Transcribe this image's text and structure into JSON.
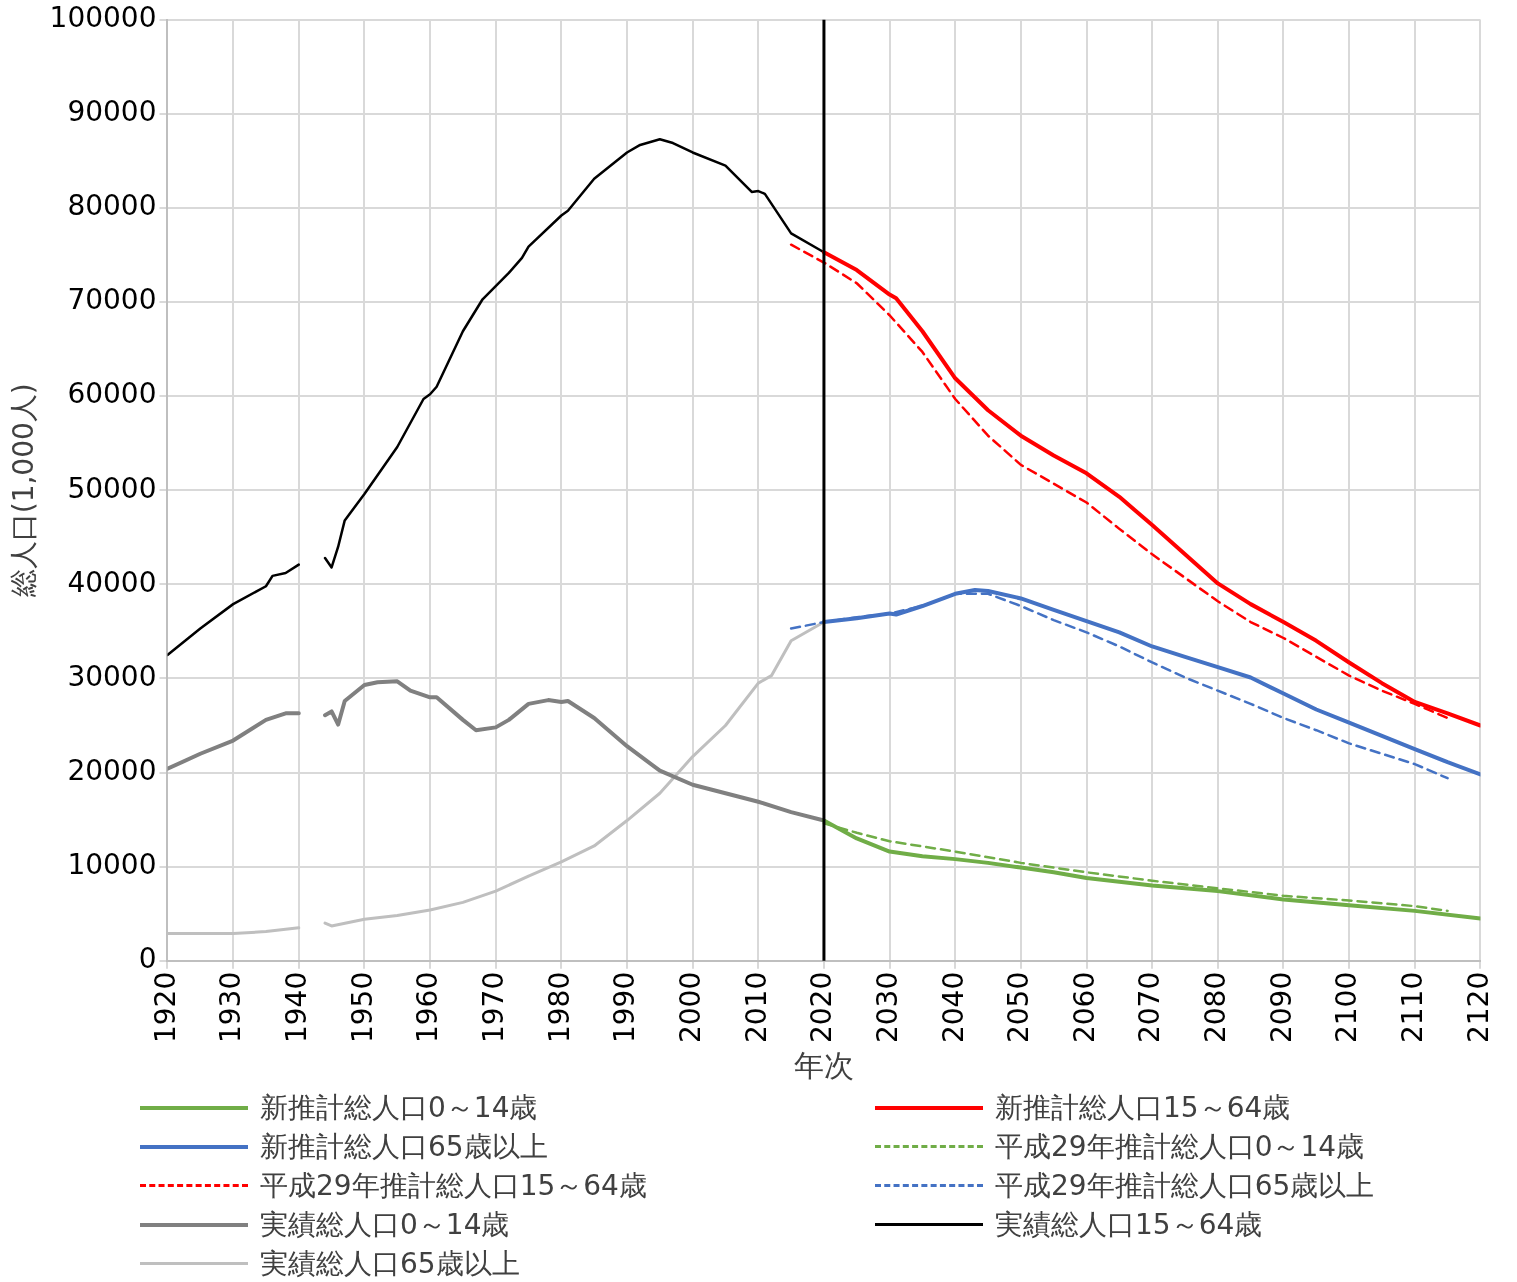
{
  "chart_data": {
    "type": "line",
    "xlabel": "年次",
    "ylabel": "総人口(1,000人)",
    "xlim": [
      1920,
      2120
    ],
    "xticks": [
      1920,
      1930,
      1940,
      1950,
      1960,
      1970,
      1980,
      1990,
      2000,
      2010,
      2020,
      2030,
      2040,
      2050,
      2060,
      2070,
      2080,
      2090,
      2100,
      2110,
      2120
    ],
    "ylim": [
      0,
      100000
    ],
    "yticks": [
      0,
      10000,
      20000,
      30000,
      40000,
      50000,
      60000,
      70000,
      80000,
      90000,
      100000
    ],
    "grid": true,
    "legend": "bottom",
    "marker": "none",
    "ref_lines": [
      {
        "axis": "x",
        "value": 2020,
        "color": "#000000"
      }
    ],
    "series": [
      {
        "name": "新推計総人口0～14歳",
        "color": "#70ad47",
        "line_style": "solid",
        "x": [
          2020,
          2025,
          2030,
          2035,
          2040,
          2045,
          2050,
          2055,
          2060,
          2065,
          2070,
          2080,
          2090,
          2100,
          2110,
          2120
        ],
        "values": [
          14900,
          13000,
          11600,
          11100,
          10800,
          10400,
          9900,
          9400,
          8800,
          8400,
          8000,
          7400,
          6500,
          5900,
          5300,
          4500
        ]
      },
      {
        "name": "新推計総人口15～64歳",
        "color": "#ff0000",
        "line_style": "solid",
        "x": [
          2020,
          2025,
          2030,
          2031,
          2035,
          2040,
          2045,
          2050,
          2055,
          2060,
          2065,
          2070,
          2075,
          2080,
          2085,
          2090,
          2095,
          2100,
          2105,
          2110,
          2115,
          2120
        ],
        "values": [
          75300,
          73400,
          70800,
          70400,
          66900,
          61900,
          58500,
          55800,
          53700,
          51800,
          49300,
          46300,
          43200,
          40100,
          37900,
          36000,
          34000,
          31700,
          29500,
          27500,
          26300,
          25000
        ]
      },
      {
        "name": "新推計総人口65歳以上",
        "color": "#4472c4",
        "line_style": "solid",
        "x": [
          2020,
          2025,
          2030,
          2031,
          2035,
          2040,
          2043,
          2045,
          2050,
          2055,
          2060,
          2065,
          2070,
          2075,
          2080,
          2085,
          2090,
          2095,
          2100,
          2105,
          2110,
          2115,
          2120
        ],
        "values": [
          36000,
          36400,
          36900,
          36800,
          37700,
          39000,
          39400,
          39300,
          38500,
          37300,
          36100,
          34900,
          33400,
          32300,
          31200,
          30100,
          28400,
          26700,
          25300,
          23900,
          22500,
          21100,
          19800
        ]
      },
      {
        "name": "平成29年推計総人口0～14歳",
        "color": "#70ad47",
        "line_style": "dashed",
        "x": [
          2020,
          2025,
          2030,
          2040,
          2050,
          2060,
          2070,
          2080,
          2090,
          2100,
          2110,
          2115
        ],
        "values": [
          14600,
          13600,
          12700,
          11600,
          10400,
          9400,
          8500,
          7700,
          6900,
          6400,
          5800,
          5300
        ]
      },
      {
        "name": "平成29年推計総人口15～64歳",
        "color": "#ff0000",
        "line_style": "dashed",
        "x": [
          2015,
          2020,
          2025,
          2030,
          2035,
          2040,
          2045,
          2050,
          2055,
          2060,
          2065,
          2070,
          2075,
          2080,
          2085,
          2090,
          2095,
          2100,
          2105,
          2110,
          2115
        ],
        "values": [
          76100,
          74200,
          72000,
          68600,
          64700,
          59700,
          55800,
          52700,
          50700,
          48700,
          45900,
          43200,
          40700,
          38200,
          36000,
          34300,
          32300,
          30300,
          28700,
          27300,
          25800
        ]
      },
      {
        "name": "平成29年推計総人口65歳以上",
        "color": "#4472c4",
        "line_style": "dashed",
        "x": [
          2015,
          2020,
          2025,
          2030,
          2035,
          2040,
          2045,
          2050,
          2055,
          2060,
          2065,
          2070,
          2075,
          2080,
          2085,
          2090,
          2095,
          2100,
          2105,
          2110,
          2115
        ],
        "values": [
          35300,
          36000,
          36500,
          36900,
          37700,
          39000,
          39000,
          37700,
          36200,
          34900,
          33400,
          31700,
          30100,
          28700,
          27300,
          25800,
          24500,
          23100,
          22000,
          20900,
          19400
        ]
      },
      {
        "name": "実績総人口0～14歳",
        "color": "#808080",
        "line_style": "solid",
        "x": [
          1920,
          1925,
          1930,
          1935,
          1938,
          1940,
          1942,
          1944,
          1945,
          1946,
          1947,
          1950,
          1952,
          1955,
          1957,
          1960,
          1961,
          1965,
          1967,
          1970,
          1972,
          1975,
          1978,
          1980,
          1981,
          1985,
          1990,
          1995,
          2000,
          2005,
          2010,
          2015,
          2020
        ],
        "values": [
          20400,
          22000,
          23400,
          25600,
          26300,
          26300,
          null,
          26100,
          26500,
          25100,
          27600,
          29300,
          29600,
          29700,
          28700,
          28000,
          28000,
          25600,
          24500,
          24800,
          25600,
          27300,
          27700,
          27500,
          27600,
          25800,
          22800,
          20200,
          18700,
          17800,
          16900,
          15800,
          14900
        ]
      },
      {
        "name": "実績総人口15～64歳",
        "color": "#000000",
        "line_style": "solid",
        "x": [
          1920,
          1925,
          1930,
          1935,
          1936,
          1938,
          1940,
          1942,
          1944,
          1945,
          1946,
          1947,
          1950,
          1955,
          1959,
          1960,
          1961,
          1965,
          1968,
          1970,
          1972,
          1974,
          1975,
          1980,
          1981,
          1985,
          1990,
          1992,
          1995,
          1997,
          2000,
          2005,
          2009,
          2010,
          2011,
          2015,
          2020
        ],
        "values": [
          32500,
          35300,
          37900,
          39800,
          40900,
          41200,
          42100,
          null,
          42800,
          41800,
          44000,
          46800,
          49600,
          54600,
          59700,
          60200,
          61000,
          66900,
          70300,
          71700,
          73100,
          74700,
          75900,
          79200,
          79700,
          83100,
          85900,
          86700,
          87300,
          86900,
          85900,
          84500,
          81700,
          81800,
          81500,
          77300,
          75300
        ]
      },
      {
        "name": "実績総人口65歳以上",
        "color": "#bfbfbf",
        "line_style": "solid",
        "x": [
          1920,
          1930,
          1935,
          1940,
          1942,
          1944,
          1945,
          1950,
          1955,
          1960,
          1965,
          1970,
          1975,
          1980,
          1985,
          1990,
          1995,
          2000,
          2005,
          2010,
          2012,
          2015,
          2020
        ],
        "values": [
          2900,
          2900,
          3100,
          3500,
          null,
          4000,
          3700,
          4400,
          4800,
          5400,
          6200,
          7400,
          9000,
          10500,
          12200,
          14900,
          17800,
          21700,
          25000,
          29500,
          30300,
          34000,
          36000
        ]
      }
    ]
  }
}
